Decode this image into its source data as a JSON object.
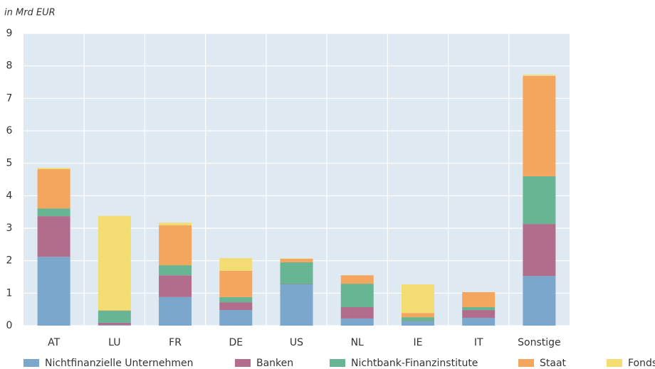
{
  "chart_data": {
    "type": "stacked_bar",
    "subtitle": "in Mrd EUR",
    "categories": [
      "AT",
      "LU",
      "FR",
      "DE",
      "US",
      "NL",
      "IE",
      "IT",
      "Sonstige"
    ],
    "series": [
      {
        "name": "Nichtfinanzielle Unternehmen",
        "color": "#7ba7cc",
        "values": [
          2.12,
          0.02,
          0.88,
          0.48,
          1.27,
          0.22,
          0.13,
          0.24,
          1.53
        ]
      },
      {
        "name": "Banken",
        "color": "#b26d8c",
        "values": [
          1.25,
          0.07,
          0.67,
          0.24,
          0.01,
          0.35,
          0.01,
          0.24,
          1.6
        ]
      },
      {
        "name": "Nichtbank-Finanzinstitute",
        "color": "#67b592",
        "values": [
          0.24,
          0.37,
          0.31,
          0.16,
          0.67,
          0.72,
          0.12,
          0.09,
          1.47
        ]
      },
      {
        "name": "Staat",
        "color": "#f5a65e",
        "values": [
          1.21,
          0.01,
          1.23,
          0.81,
          0.11,
          0.26,
          0.13,
          0.46,
          3.09
        ]
      },
      {
        "name": "Fonds",
        "color": "#f3dc72",
        "values": [
          0.04,
          2.91,
          0.08,
          0.39,
          0.01,
          0,
          0.88,
          0,
          0.04
        ]
      }
    ],
    "ylim": [
      0,
      9
    ],
    "yticks": [
      0,
      1,
      2,
      3,
      4,
      5,
      6,
      7,
      8,
      9
    ],
    "grid": true,
    "legend": "bottom"
  }
}
